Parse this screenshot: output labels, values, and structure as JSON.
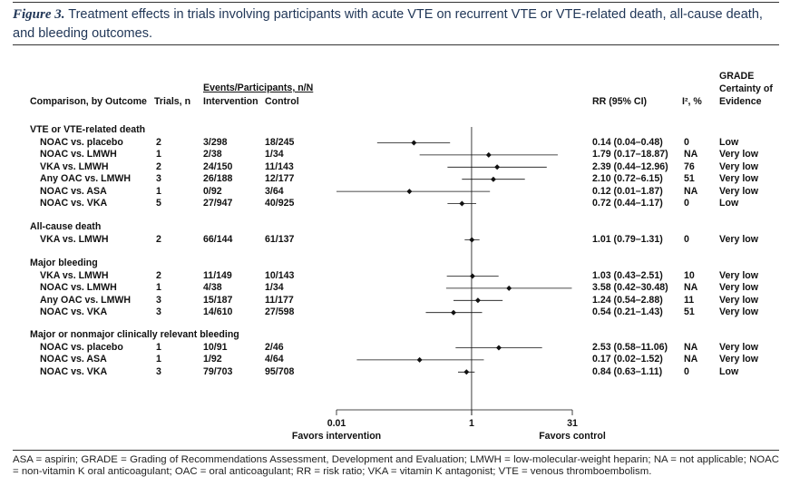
{
  "caption": {
    "label": "Figure 3.",
    "text": " Treatment effects in trials involving participants with acute VTE on recurrent VTE or VTE-related death, all-cause death, and bleeding outcomes."
  },
  "headers": {
    "comparison": "Comparison, by Outcome",
    "trials": "Trials, n",
    "events": "Events/Participants, n/N",
    "intervention": "Intervention",
    "control": "Control",
    "rr": "RR (95% CI)",
    "i2": "I², %",
    "grade1": "GRADE",
    "grade2": "Certainty of",
    "grade3": "Evidence"
  },
  "sections": [
    {
      "title": "VTE or VTE-related death",
      "rows": [
        {
          "comparison": "NOAC vs. placebo",
          "trials": "2",
          "intervention": "3/298",
          "control": "18/245",
          "rr_text": "0.14 (0.04–0.48)",
          "i2": "0",
          "grade": "Low",
          "rr": 0.14,
          "lo": 0.04,
          "hi": 0.48
        },
        {
          "comparison": "NOAC vs. LMWH",
          "trials": "1",
          "intervention": "2/38",
          "control": "1/34",
          "rr_text": "1.79 (0.17–18.87)",
          "i2": "NA",
          "grade": "Very low",
          "rr": 1.79,
          "lo": 0.17,
          "hi": 18.87
        },
        {
          "comparison": "VKA vs. LMWH",
          "trials": "2",
          "intervention": "24/150",
          "control": "11/143",
          "rr_text": "2.39 (0.44–12.96)",
          "i2": "76",
          "grade": "Very low",
          "rr": 2.39,
          "lo": 0.44,
          "hi": 12.96
        },
        {
          "comparison": "Any OAC vs. LMWH",
          "trials": "3",
          "intervention": "26/188",
          "control": "12/177",
          "rr_text": "2.10 (0.72–6.15)",
          "i2": "51",
          "grade": "Very low",
          "rr": 2.1,
          "lo": 0.72,
          "hi": 6.15
        },
        {
          "comparison": "NOAC vs. ASA",
          "trials": "1",
          "intervention": "0/92",
          "control": "3/64",
          "rr_text": "0.12 (0.01–1.87)",
          "i2": "NA",
          "grade": "Very low",
          "rr": 0.12,
          "lo": 0.01,
          "hi": 1.87
        },
        {
          "comparison": "NOAC vs. VKA",
          "trials": "5",
          "intervention": "27/947",
          "control": "40/925",
          "rr_text": "0.72 (0.44–1.17)",
          "i2": "0",
          "grade": "Low",
          "rr": 0.72,
          "lo": 0.44,
          "hi": 1.17
        }
      ]
    },
    {
      "title": "All-cause death",
      "rows": [
        {
          "comparison": "VKA vs. LMWH",
          "trials": "2",
          "intervention": "66/144",
          "control": "61/137",
          "rr_text": "1.01 (0.79–1.31)",
          "i2": "0",
          "grade": "Very low",
          "rr": 1.01,
          "lo": 0.79,
          "hi": 1.31
        }
      ]
    },
    {
      "title": "Major bleeding",
      "rows": [
        {
          "comparison": "VKA vs. LMWH",
          "trials": "2",
          "intervention": "11/149",
          "control": "10/143",
          "rr_text": "1.03 (0.43–2.51)",
          "i2": "10",
          "grade": "Very low",
          "rr": 1.03,
          "lo": 0.43,
          "hi": 2.51
        },
        {
          "comparison": "NOAC vs. LMWH",
          "trials": "1",
          "intervention": "4/38",
          "control": "1/34",
          "rr_text": "3.58 (0.42–30.48)",
          "i2": "NA",
          "grade": "Very low",
          "rr": 3.58,
          "lo": 0.42,
          "hi": 30.48
        },
        {
          "comparison": "Any OAC vs. LMWH",
          "trials": "3",
          "intervention": "15/187",
          "control": "11/177",
          "rr_text": "1.24 (0.54–2.88)",
          "i2": "11",
          "grade": "Very low",
          "rr": 1.24,
          "lo": 0.54,
          "hi": 2.88
        },
        {
          "comparison": "NOAC vs. VKA",
          "trials": "3",
          "intervention": "14/610",
          "control": "27/598",
          "rr_text": "0.54 (0.21–1.43)",
          "i2": "51",
          "grade": "Very low",
          "rr": 0.54,
          "lo": 0.21,
          "hi": 1.43
        }
      ]
    },
    {
      "title": "Major or nonmajor clinically relevant bleeding",
      "rows": [
        {
          "comparison": "NOAC vs. placebo",
          "trials": "1",
          "intervention": "10/91",
          "control": "2/46",
          "rr_text": "2.53 (0.58–11.06)",
          "i2": "NA",
          "grade": "Very low",
          "rr": 2.53,
          "lo": 0.58,
          "hi": 11.06
        },
        {
          "comparison": "NOAC vs. ASA",
          "trials": "1",
          "intervention": "1/92",
          "control": "4/64",
          "rr_text": "0.17 (0.02–1.52)",
          "i2": "NA",
          "grade": "Very low",
          "rr": 0.17,
          "lo": 0.02,
          "hi": 1.52
        },
        {
          "comparison": "NOAC vs. VKA",
          "trials": "3",
          "intervention": "79/703",
          "control": "95/708",
          "rr_text": "0.84 (0.63–1.11)",
          "i2": "0",
          "grade": "Low",
          "rr": 0.84,
          "lo": 0.63,
          "hi": 1.11
        }
      ]
    }
  ],
  "axis": {
    "scale": "log",
    "min": 0.01,
    "max": 31,
    "null_value": 1,
    "tick_labels": [
      "0.01",
      "1",
      "31"
    ],
    "tick_values": [
      0.01,
      1,
      31
    ],
    "left_label": "Favors intervention",
    "right_label": "Favors control"
  },
  "footnote": "ASA = aspirin; GRADE = Grading of Recommendations Assessment, Development and Evaluation; LMWH = low-molecular-weight heparin; NA = not applicable; NOAC = non-vitamin K oral anticoagulant; OAC = oral anticoagulant; RR = risk ratio; VKA = vitamin K antagonist; VTE = venous thromboembolism."
}
